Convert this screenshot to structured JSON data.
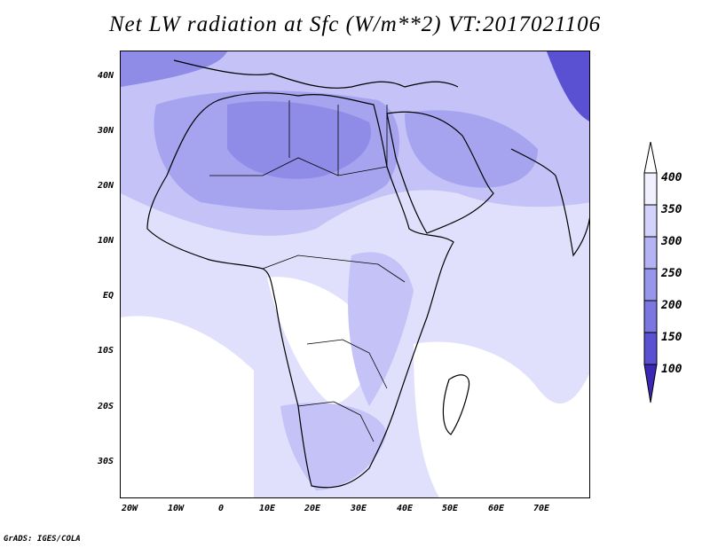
{
  "title": "Net LW radiation at Sfc (W/m**2) VT:2017021106",
  "footer": "GrADS: IGES/COLA",
  "lat_labels": [
    "40N",
    "30N",
    "20N",
    "10N",
    "EQ",
    "10S",
    "20S",
    "30S"
  ],
  "lon_labels": [
    "20W",
    "10W",
    "0",
    "10E",
    "20E",
    "30E",
    "40E",
    "50E",
    "60E",
    "70E"
  ],
  "colorbar": {
    "labels": [
      "400",
      "350",
      "300",
      "250",
      "200",
      "150",
      "100"
    ],
    "colors": [
      "#f0f0fe",
      "#d2d2fa",
      "#b4b4f5",
      "#9696eb",
      "#7a78e0",
      "#5a50d2",
      "#3c28b4"
    ]
  },
  "palette": {
    "lt250": "#8f8ce8",
    "r250_300": "#a6a4ef",
    "r300_350": "#c4c2f6",
    "r350_400": "#e0e0fd",
    "gt400": "#ffffff",
    "deep": "#5a50d2"
  }
}
